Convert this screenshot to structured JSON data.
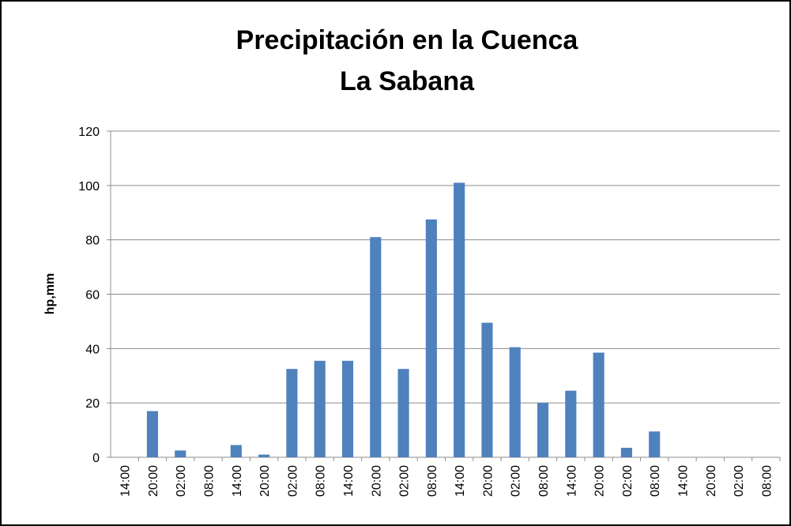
{
  "chart_data": {
    "type": "bar",
    "title": [
      "Precipitación en la Cuenca",
      "La Sabana"
    ],
    "y_label": "hp,mm",
    "categories": [
      "14:00",
      "20:00",
      "02:00",
      "08:00",
      "14:00",
      "20:00",
      "02:00",
      "08:00",
      "14:00",
      "20:00",
      "02:00",
      "08:00",
      "14:00",
      "20:00",
      "02:00",
      "08:00",
      "14:00",
      "20:00",
      "02:00",
      "08:00",
      "14:00",
      "20:00",
      "02:00",
      "08:00"
    ],
    "values": [
      0,
      17,
      2.5,
      0,
      4.5,
      1,
      32.5,
      35.5,
      35.5,
      81,
      32.5,
      87.5,
      101,
      49.5,
      40.5,
      20,
      24.5,
      38.5,
      3.5,
      9.5,
      0,
      0,
      0,
      0
    ],
    "color": "#4f81bd",
    "ylim": [
      0,
      120
    ],
    "yticks": [
      0,
      20,
      40,
      60,
      80,
      100,
      120
    ],
    "grid": true
  }
}
